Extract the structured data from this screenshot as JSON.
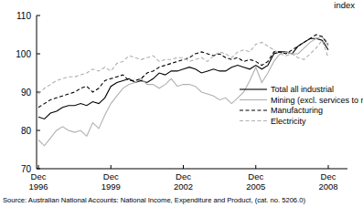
{
  "chart_data": {
    "type": "line",
    "y_label": "index",
    "source": "Source: Australian National Accounts: National Income, Expenditure and Product, (cat. no. 5206.0)",
    "categories": [
      "Dec 1996",
      null,
      null,
      null,
      null,
      null,
      null,
      null,
      null,
      null,
      null,
      null,
      "Dec 1999",
      null,
      null,
      null,
      null,
      null,
      null,
      null,
      null,
      null,
      null,
      null,
      "Dec 2002",
      null,
      null,
      null,
      null,
      null,
      null,
      null,
      null,
      null,
      null,
      null,
      "Dec 2005",
      null,
      null,
      null,
      null,
      null,
      null,
      null,
      null,
      null,
      null,
      null,
      "Dec 2008"
    ],
    "series": [
      {
        "name": "Total all industrial",
        "color": "#000000",
        "line_style": "solid",
        "values": [
          83.5,
          83,
          84.5,
          85,
          86,
          86.5,
          86.5,
          87,
          86.5,
          87.5,
          87,
          88.5,
          91.5,
          92.5,
          93,
          93.5,
          92.5,
          93,
          92.5,
          93.5,
          95,
          94.5,
          95.5,
          95.5,
          96,
          96.5,
          96,
          95,
          95.5,
          96,
          95.5,
          95.5,
          96.5,
          97,
          96.5,
          96,
          97,
          96,
          97,
          100,
          100.5,
          100.5,
          100,
          102,
          103,
          104,
          104,
          103.5,
          101
        ]
      },
      {
        "name": "Mining (excl. services to mining)",
        "color": "#b0b0b0",
        "line_style": "solid",
        "values": [
          77.5,
          76,
          78,
          80,
          81,
          80,
          79.5,
          80,
          78.5,
          82,
          80.5,
          84,
          87,
          89,
          91,
          92,
          92.5,
          93.5,
          92,
          92,
          91,
          92,
          93.5,
          91.5,
          92,
          92,
          91.5,
          90,
          89.5,
          89,
          88,
          88.5,
          87,
          88.5,
          90,
          93,
          96.5,
          92.5,
          95,
          98,
          100,
          100.5,
          100,
          100,
          101.5,
          103,
          104,
          104.5,
          102
        ]
      },
      {
        "name": "Manufacturing",
        "color": "#000000",
        "line_style": "dashed",
        "values": [
          86,
          87,
          88,
          88.5,
          89,
          89.5,
          90,
          91,
          91.5,
          90,
          91,
          93,
          93.5,
          94,
          94.5,
          93,
          93,
          93.5,
          95,
          95.5,
          96.5,
          97,
          97.5,
          98,
          98.5,
          99,
          100,
          100.5,
          100,
          99.5,
          100,
          99,
          98.5,
          99,
          98,
          98.5,
          98,
          97,
          98,
          100.5,
          100.5,
          100,
          101,
          102,
          103,
          104,
          105,
          104.5,
          102.5
        ]
      },
      {
        "name": "Electricity",
        "color": "#b0b0b0",
        "line_style": "dashed",
        "values": [
          89.5,
          91,
          92,
          93,
          93.5,
          94,
          94,
          94.5,
          95,
          96,
          95.5,
          96.5,
          95.5,
          97.5,
          98,
          99.5,
          99,
          98.5,
          99,
          99.5,
          98,
          98.5,
          98.5,
          99,
          99,
          98,
          98.5,
          99,
          98,
          99.5,
          100.5,
          100,
          99,
          100.5,
          101,
          100.5,
          102.5,
          103,
          102,
          101,
          100,
          99.5,
          100,
          99,
          98.5,
          100,
          101.5,
          103.5,
          99
        ]
      }
    ],
    "ylim": [
      70,
      110
    ],
    "yticks": [
      70,
      80,
      90,
      100,
      110
    ],
    "grid": false,
    "legend": "right"
  }
}
